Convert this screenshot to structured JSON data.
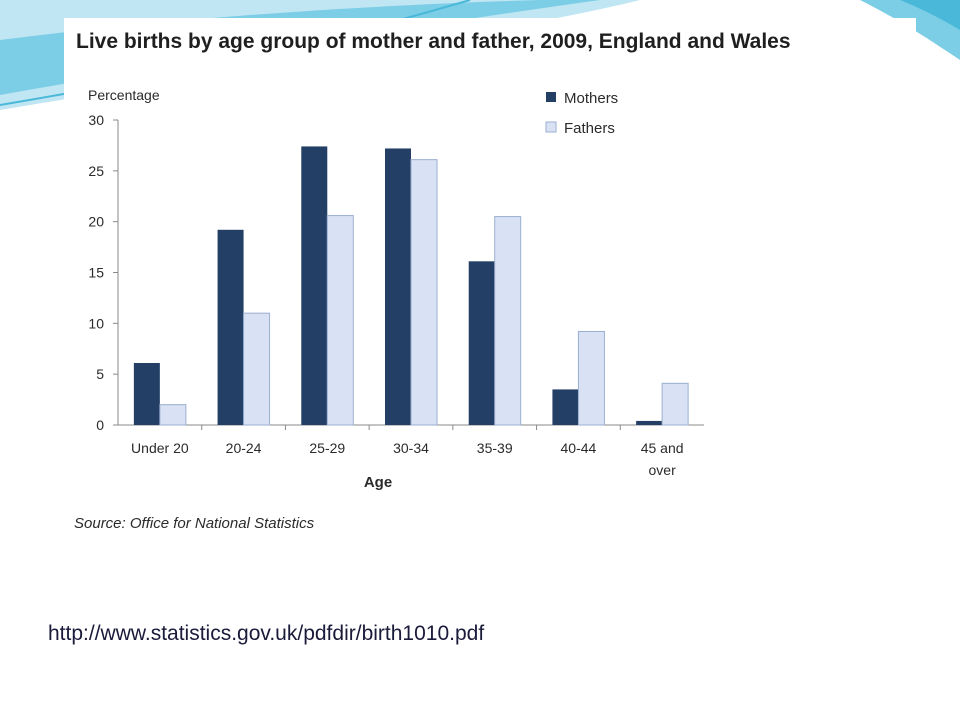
{
  "slide": {
    "source_url": "http://www.statistics.gov.uk/pdfdir/birth1010.pdf"
  },
  "colors": {
    "mothers": "#243f66",
    "fathers": "#d9e2f4",
    "fathers_outline": "#9aaed0",
    "decor_teal": "#4ab8d8"
  },
  "chart_data": {
    "type": "bar",
    "title": "Live births by age group of mother and father, 2009, England and Wales",
    "ylabel": "Percentage",
    "xlabel": "Age",
    "ylim": [
      0,
      30
    ],
    "yticks": [
      "0",
      "5",
      "10",
      "15",
      "20",
      "25",
      "30"
    ],
    "categories": [
      [
        "Under 20"
      ],
      [
        "20-24"
      ],
      [
        "25-29"
      ],
      [
        "30-34"
      ],
      [
        "35-39"
      ],
      [
        "40-44"
      ],
      [
        "45 and",
        "over"
      ]
    ],
    "series": [
      {
        "name": "Mothers",
        "values": [
          6.1,
          19.2,
          27.4,
          27.2,
          16.1,
          3.5,
          0.4
        ]
      },
      {
        "name": "Fathers",
        "values": [
          2.0,
          11.0,
          20.6,
          26.1,
          20.5,
          9.2,
          4.1
        ]
      }
    ],
    "legend_position": "top-right",
    "grid": false,
    "source": "Source: Office for National Statistics"
  }
}
